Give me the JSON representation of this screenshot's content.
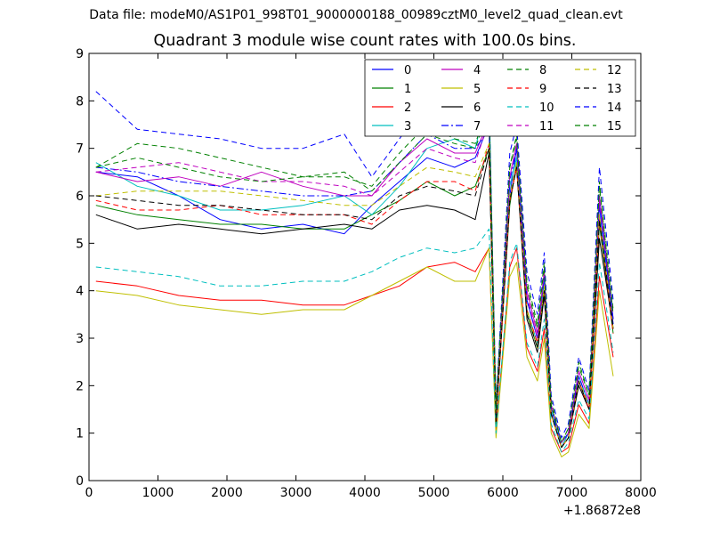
{
  "header": {
    "suptitle": "Data file: modeM0/AS1P01_998T01_9000000188_00989cztM0_level2_quad_clean.evt",
    "title": "Quadrant 3 module wise count rates with 100.0s bins."
  },
  "chart_data": {
    "type": "line",
    "title": "Quadrant 3 module wise count rates with 100.0s bins.",
    "xlabel": "",
    "ylabel": "",
    "x_offset_label": "+1.86872e8",
    "xlim": [
      0,
      8000
    ],
    "ylim": [
      0,
      9
    ],
    "x_ticks": [
      0,
      1000,
      2000,
      3000,
      4000,
      5000,
      6000,
      7000,
      8000
    ],
    "y_ticks": [
      0,
      1,
      2,
      3,
      4,
      5,
      6,
      7,
      8,
      9
    ],
    "grid": false,
    "legend_position": "top-right",
    "legend_columns": 4,
    "x": [
      100,
      700,
      1300,
      1900,
      2500,
      3100,
      3700,
      4100,
      4500,
      4900,
      5300,
      5600,
      5800,
      5900,
      6100,
      6200,
      6350,
      6500,
      6600,
      6700,
      6850,
      6950,
      7100,
      7250,
      7400,
      7600
    ],
    "series": [
      {
        "name": "0",
        "color": "#0000ff",
        "dash": "solid",
        "values": [
          6.5,
          6.4,
          6.0,
          5.5,
          5.3,
          5.4,
          5.2,
          5.8,
          6.3,
          6.8,
          6.6,
          6.8,
          7.5,
          1.4,
          6.0,
          7.0,
          3.8,
          3.0,
          4.3,
          1.5,
          0.7,
          1.0,
          2.2,
          1.6,
          5.8,
          3.3
        ]
      },
      {
        "name": "1",
        "color": "#008000",
        "dash": "solid",
        "values": [
          5.8,
          5.6,
          5.5,
          5.4,
          5.4,
          5.3,
          5.3,
          5.6,
          5.9,
          6.3,
          6.0,
          6.2,
          7.0,
          1.3,
          5.8,
          6.7,
          3.5,
          2.8,
          4.0,
          1.4,
          0.7,
          0.9,
          2.1,
          1.5,
          5.4,
          3.1
        ]
      },
      {
        "name": "2",
        "color": "#ff0000",
        "dash": "solid",
        "values": [
          4.2,
          4.1,
          3.9,
          3.8,
          3.8,
          3.7,
          3.7,
          3.9,
          4.1,
          4.5,
          4.6,
          4.4,
          4.9,
          1.0,
          4.5,
          4.9,
          2.8,
          2.3,
          3.2,
          1.1,
          0.6,
          0.7,
          1.6,
          1.2,
          4.3,
          2.6
        ]
      },
      {
        "name": "3",
        "color": "#00bfbf",
        "dash": "solid",
        "values": [
          6.7,
          6.2,
          6.0,
          5.7,
          5.7,
          5.8,
          6.0,
          5.6,
          6.2,
          7.0,
          7.2,
          7.0,
          8.2,
          1.3,
          6.2,
          6.8,
          3.6,
          2.9,
          4.2,
          1.5,
          0.7,
          1.0,
          2.2,
          1.6,
          5.6,
          3.2
        ]
      },
      {
        "name": "4",
        "color": "#bf00bf",
        "dash": "solid",
        "values": [
          6.5,
          6.3,
          6.4,
          6.2,
          6.5,
          6.2,
          6.0,
          6.0,
          6.7,
          7.2,
          6.9,
          6.9,
          7.6,
          1.5,
          6.4,
          7.1,
          4.0,
          3.1,
          4.4,
          1.6,
          0.8,
          1.0,
          2.3,
          1.7,
          6.0,
          3.4
        ]
      },
      {
        "name": "5",
        "color": "#bfbf00",
        "dash": "solid",
        "values": [
          4.0,
          3.9,
          3.7,
          3.6,
          3.5,
          3.6,
          3.6,
          3.9,
          4.2,
          4.5,
          4.2,
          4.2,
          4.9,
          0.9,
          4.3,
          4.6,
          2.6,
          2.1,
          3.0,
          1.0,
          0.5,
          0.6,
          1.4,
          1.1,
          4.0,
          2.2
        ]
      },
      {
        "name": "6",
        "color": "#000000",
        "dash": "solid",
        "values": [
          5.6,
          5.3,
          5.4,
          5.3,
          5.2,
          5.3,
          5.4,
          5.3,
          5.7,
          5.8,
          5.7,
          5.5,
          6.9,
          1.2,
          5.9,
          6.6,
          3.4,
          2.7,
          3.9,
          1.4,
          0.7,
          0.9,
          2.0,
          1.5,
          5.1,
          3.2
        ]
      },
      {
        "name": "7",
        "color": "#0000ff",
        "dash": "dashdot",
        "values": [
          6.6,
          6.5,
          6.3,
          6.2,
          6.1,
          6.0,
          6.0,
          6.1,
          6.7,
          7.3,
          7.0,
          7.0,
          7.4,
          1.4,
          6.3,
          7.0,
          3.8,
          3.0,
          4.3,
          1.5,
          0.8,
          1.0,
          2.2,
          1.6,
          5.9,
          3.4
        ]
      },
      {
        "name": "8",
        "color": "#008000",
        "dash": "dashed",
        "values": [
          6.6,
          7.1,
          7.0,
          6.8,
          6.6,
          6.4,
          6.4,
          6.2,
          6.9,
          7.5,
          7.2,
          7.1,
          7.9,
          1.6,
          6.6,
          7.3,
          4.2,
          3.3,
          4.6,
          1.7,
          0.8,
          1.1,
          2.5,
          1.8,
          6.3,
          3.6
        ]
      },
      {
        "name": "9",
        "color": "#ff0000",
        "dash": "dashed",
        "values": [
          5.9,
          5.7,
          5.7,
          5.8,
          5.6,
          5.6,
          5.6,
          5.4,
          5.9,
          6.3,
          6.3,
          6.1,
          7.1,
          1.3,
          5.9,
          6.6,
          3.6,
          2.9,
          4.1,
          1.4,
          0.7,
          0.9,
          2.1,
          1.5,
          5.5,
          3.1
        ]
      },
      {
        "name": "10",
        "color": "#00bfbf",
        "dash": "dashed",
        "values": [
          4.5,
          4.4,
          4.3,
          4.1,
          4.1,
          4.2,
          4.2,
          4.4,
          4.7,
          4.9,
          4.8,
          4.9,
          5.3,
          1.0,
          4.6,
          5.0,
          2.9,
          2.4,
          3.4,
          1.2,
          0.6,
          0.8,
          1.7,
          1.3,
          4.6,
          2.7
        ]
      },
      {
        "name": "11",
        "color": "#bf00bf",
        "dash": "dashed",
        "values": [
          6.5,
          6.6,
          6.7,
          6.5,
          6.3,
          6.3,
          6.2,
          6.0,
          6.5,
          7.0,
          6.8,
          6.7,
          7.6,
          1.4,
          6.4,
          7.1,
          3.9,
          3.0,
          4.4,
          1.6,
          0.8,
          1.0,
          2.3,
          1.7,
          5.9,
          3.5
        ]
      },
      {
        "name": "12",
        "color": "#bfbf00",
        "dash": "dashed",
        "values": [
          6.0,
          6.1,
          6.1,
          6.1,
          6.0,
          5.9,
          5.8,
          5.8,
          6.2,
          6.6,
          6.5,
          6.4,
          7.1,
          1.3,
          6.0,
          6.7,
          3.6,
          2.8,
          4.1,
          1.4,
          0.7,
          0.9,
          2.1,
          1.6,
          5.6,
          3.2
        ]
      },
      {
        "name": "13",
        "color": "#000000",
        "dash": "dashed",
        "values": [
          6.0,
          5.9,
          5.8,
          5.8,
          5.7,
          5.6,
          5.6,
          5.5,
          6.0,
          6.2,
          6.1,
          6.0,
          7.0,
          1.3,
          5.9,
          6.6,
          3.5,
          2.8,
          4.0,
          1.4,
          0.7,
          0.9,
          2.1,
          1.5,
          5.5,
          3.2
        ]
      },
      {
        "name": "14",
        "color": "#0000ff",
        "dash": "dashed",
        "values": [
          8.2,
          7.4,
          7.3,
          7.2,
          7.0,
          7.0,
          7.3,
          6.4,
          7.2,
          8.0,
          8.2,
          7.6,
          8.0,
          1.6,
          6.9,
          7.5,
          4.4,
          3.5,
          4.8,
          1.8,
          0.9,
          1.2,
          2.6,
          1.9,
          6.6,
          3.8
        ]
      },
      {
        "name": "15",
        "color": "#008000",
        "dash": "dashed",
        "values": [
          6.6,
          6.8,
          6.6,
          6.4,
          6.3,
          6.4,
          6.5,
          6.1,
          6.7,
          7.3,
          7.1,
          7.0,
          7.8,
          1.5,
          6.6,
          7.2,
          4.1,
          3.2,
          4.5,
          1.6,
          0.8,
          1.1,
          2.4,
          1.8,
          6.2,
          3.5
        ]
      }
    ]
  }
}
